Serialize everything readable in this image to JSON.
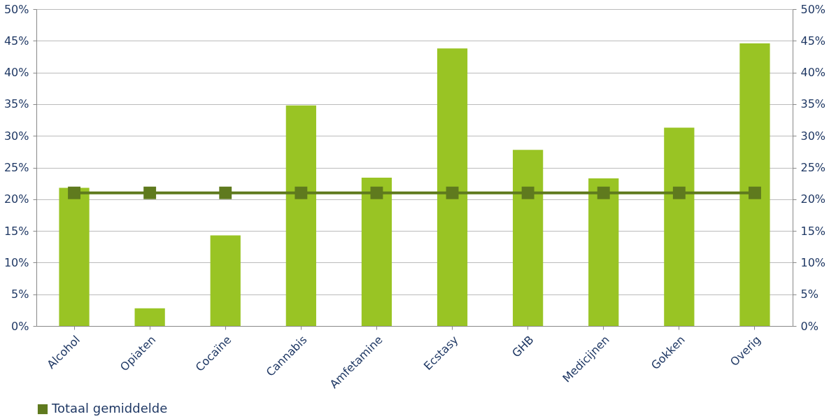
{
  "chart_data": {
    "type": "bar",
    "categories": [
      "Alcohol",
      "Opiaten",
      "Cocaïne",
      "Cannabis",
      "Amfetamine",
      "Ecstasy",
      "GHB",
      "Medicijnen",
      "Gokken",
      "Overig"
    ],
    "series": [
      {
        "color": "#99c424",
        "values": [
          21.8,
          2.8,
          14.3,
          34.8,
          23.4,
          43.8,
          27.8,
          23.3,
          31.3,
          44.6
        ]
      },
      {
        "name": "Totaal gemiddelde",
        "type": "line",
        "axis": "y2",
        "color": "#5f7a1e",
        "marker": "square",
        "values": [
          21,
          21,
          21,
          21,
          21,
          21,
          21,
          21,
          21,
          21
        ]
      }
    ],
    "ylim": [
      0,
      50
    ],
    "yticks": [
      {
        "value": 0,
        "label": "0%"
      },
      {
        "value": 5,
        "label": "5%"
      },
      {
        "value": 10,
        "label": "10%"
      },
      {
        "value": 15,
        "label": "15%"
      },
      {
        "value": 20,
        "label": "20%"
      },
      {
        "value": 25,
        "label": "25%"
      },
      {
        "value": 30,
        "label": "30%"
      },
      {
        "value": 35,
        "label": "35%"
      },
      {
        "value": 40,
        "label": "40%"
      },
      {
        "value": 45,
        "label": "45%"
      },
      {
        "value": 50,
        "label": "50%"
      }
    ],
    "y2lim": [
      0,
      50
    ],
    "y2ticks": [
      {
        "value": 0,
        "label": "0%"
      },
      {
        "value": 5,
        "label": "5%"
      },
      {
        "value": 10,
        "label": "10%"
      },
      {
        "value": 15,
        "label": "15%"
      },
      {
        "value": 20,
        "label": "20%"
      },
      {
        "value": 25,
        "label": "25%"
      },
      {
        "value": 30,
        "label": "30%"
      },
      {
        "value": 35,
        "label": "35%"
      },
      {
        "value": 40,
        "label": "40%"
      },
      {
        "value": 45,
        "label": "45%"
      },
      {
        "value": 50,
        "label": "50%"
      }
    ],
    "grid": "y",
    "legend": "bottom"
  }
}
